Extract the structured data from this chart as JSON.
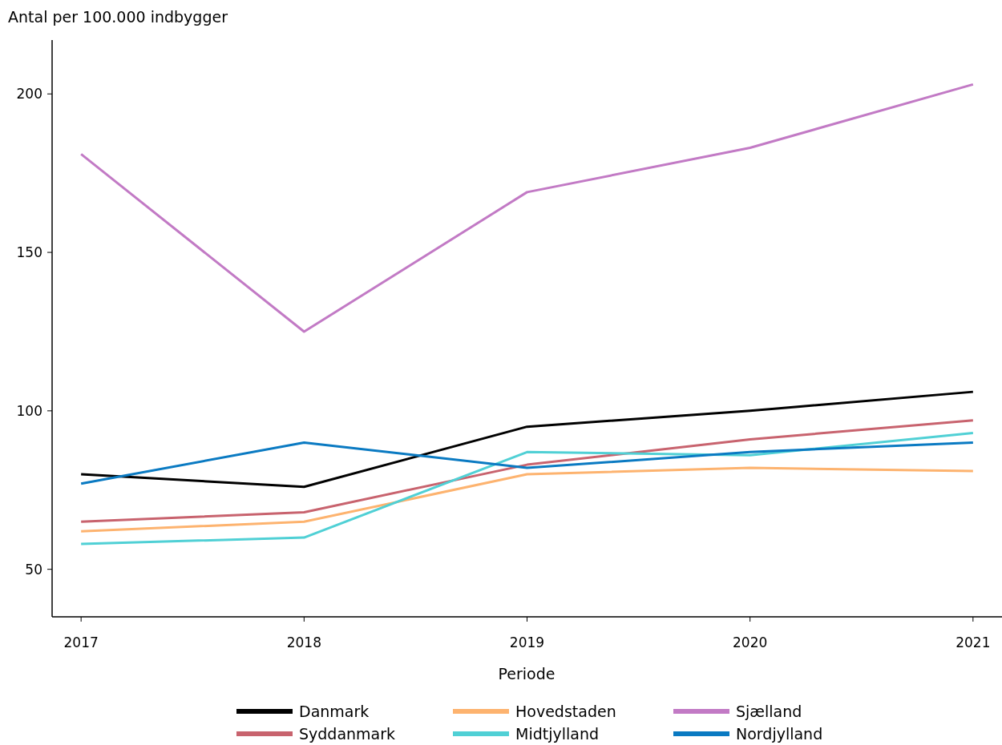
{
  "chart_data": {
    "type": "line",
    "ylabel": "Antal per 100.000 indbygger",
    "xlabel": "Periode",
    "x": [
      2017,
      2018,
      2019,
      2020,
      2021
    ],
    "xlim": [
      2016.87,
      2021.13
    ],
    "xticks": [
      2017,
      2018,
      2019,
      2020,
      2021
    ],
    "ylim": [
      35,
      217
    ],
    "yticks": [
      50,
      100,
      150,
      200
    ],
    "grid": false,
    "legend": "bottom",
    "line_style": "solid",
    "marker": "none",
    "series": [
      {
        "name": "Danmark",
        "color": "#000000",
        "values": [
          80,
          76,
          95,
          100,
          106
        ]
      },
      {
        "name": "Syddanmark",
        "color": "#c8636e",
        "values": [
          65,
          68,
          83,
          91,
          97
        ]
      },
      {
        "name": "Hovedstaden",
        "color": "#fdb36f",
        "values": [
          62,
          65,
          80,
          82,
          81
        ]
      },
      {
        "name": "Midtjylland",
        "color": "#50d0d5",
        "values": [
          58,
          60,
          87,
          86,
          93
        ]
      },
      {
        "name": "Sjælland",
        "color": "#c27ac5",
        "values": [
          181,
          125,
          169,
          183,
          203
        ]
      },
      {
        "name": "Nordjylland",
        "color": "#0a7ac2",
        "values": [
          77,
          90,
          82,
          87,
          90
        ]
      }
    ]
  }
}
